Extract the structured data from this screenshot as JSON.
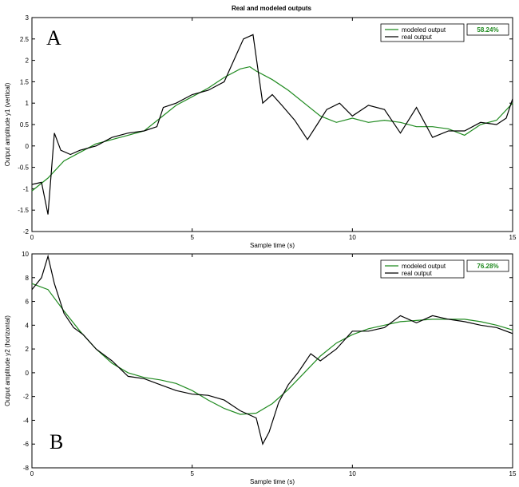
{
  "colors": {
    "modeled": "#1f8a1f",
    "real": "#000000",
    "fit_text": "#1f8a1f"
  },
  "chart_data": [
    {
      "type": "line",
      "panel": "A",
      "title": "Real and modeled outputs",
      "xlabel": "Sample time (s)",
      "ylabel": "Output amplitude y1 (vertical)",
      "xlim": [
        0,
        15
      ],
      "ylim": [
        -2,
        3
      ],
      "xticks": [
        0,
        5,
        10,
        15
      ],
      "yticks": [
        -2,
        -1.5,
        -1,
        -0.5,
        0,
        0.5,
        1,
        1.5,
        2,
        2.5,
        3
      ],
      "legend_position": "top-right",
      "fit_label": "58.24%",
      "series": [
        {
          "name": "modeled output",
          "x": [
            0,
            0.5,
            1,
            1.5,
            2,
            2.5,
            3,
            3.5,
            4,
            4.5,
            5,
            5.5,
            6,
            6.5,
            6.8,
            7,
            7.5,
            8,
            8.5,
            9,
            9.5,
            10,
            10.5,
            11,
            11.5,
            12,
            12.5,
            13,
            13.5,
            14,
            14.5,
            15
          ],
          "y": [
            -1.05,
            -0.75,
            -0.35,
            -0.15,
            0.05,
            0.15,
            0.25,
            0.35,
            0.65,
            0.95,
            1.15,
            1.35,
            1.6,
            1.8,
            1.85,
            1.75,
            1.55,
            1.3,
            1.0,
            0.7,
            0.55,
            0.65,
            0.55,
            0.6,
            0.55,
            0.45,
            0.45,
            0.4,
            0.25,
            0.5,
            0.6,
            1.0
          ]
        },
        {
          "name": "real output",
          "x": [
            0,
            0.3,
            0.5,
            0.7,
            0.9,
            1.2,
            1.5,
            2,
            2.5,
            3,
            3.5,
            3.9,
            4.1,
            4.5,
            5,
            5.5,
            6,
            6.3,
            6.6,
            6.9,
            7.2,
            7.5,
            7.8,
            8.2,
            8.6,
            8.9,
            9.2,
            9.6,
            10,
            10.5,
            11,
            11.5,
            12,
            12.5,
            13,
            13.5,
            14,
            14.5,
            14.8,
            15
          ],
          "y": [
            -0.9,
            -0.85,
            -1.6,
            0.3,
            -0.1,
            -0.2,
            -0.1,
            0.0,
            0.2,
            0.3,
            0.35,
            0.45,
            0.9,
            1.0,
            1.2,
            1.3,
            1.5,
            2.0,
            2.5,
            2.6,
            1.0,
            1.2,
            0.95,
            0.6,
            0.15,
            0.5,
            0.85,
            1.0,
            0.7,
            0.95,
            0.85,
            0.3,
            0.9,
            0.2,
            0.35,
            0.35,
            0.55,
            0.5,
            0.65,
            1.1
          ]
        }
      ]
    },
    {
      "type": "line",
      "panel": "B",
      "xlabel": "Sample time (s)",
      "ylabel": "Output amplitude y2 (horizontal)",
      "xlim": [
        0,
        15
      ],
      "ylim": [
        -8,
        10
      ],
      "xticks": [
        0,
        5,
        10,
        15
      ],
      "yticks": [
        -8,
        -6,
        -4,
        -2,
        0,
        2,
        4,
        6,
        8,
        10
      ],
      "legend_position": "top-right",
      "fit_label": "76.28%",
      "series": [
        {
          "name": "modeled output",
          "x": [
            0,
            0.5,
            1,
            1.5,
            2,
            2.5,
            3,
            3.5,
            4,
            4.5,
            5,
            5.5,
            6,
            6.5,
            7,
            7.5,
            8,
            8.5,
            9,
            9.5,
            10,
            10.5,
            11,
            11.5,
            12,
            12.5,
            13,
            13.5,
            14,
            14.5,
            15
          ],
          "y": [
            7.5,
            7.0,
            5.2,
            3.5,
            2.0,
            0.8,
            0.0,
            -0.4,
            -0.6,
            -0.9,
            -1.5,
            -2.3,
            -3.0,
            -3.5,
            -3.4,
            -2.6,
            -1.4,
            0.0,
            1.4,
            2.5,
            3.2,
            3.7,
            4.0,
            4.3,
            4.4,
            4.5,
            4.5,
            4.5,
            4.3,
            4.0,
            3.6
          ]
        },
        {
          "name": "real output",
          "x": [
            0,
            0.3,
            0.5,
            0.7,
            1,
            1.3,
            1.6,
            2,
            2.5,
            3,
            3.5,
            4,
            4.5,
            5,
            5.5,
            6,
            6.5,
            7,
            7.2,
            7.4,
            7.7,
            8,
            8.3,
            8.7,
            9,
            9.5,
            10,
            10.5,
            11,
            11.5,
            12,
            12.5,
            13,
            13.5,
            14,
            14.5,
            15
          ],
          "y": [
            7.0,
            8.0,
            9.8,
            7.5,
            5.0,
            3.8,
            3.2,
            2.0,
            1.0,
            -0.3,
            -0.5,
            -1.0,
            -1.5,
            -1.8,
            -1.9,
            -2.3,
            -3.2,
            -3.8,
            -6.0,
            -5.0,
            -2.5,
            -1.0,
            0.0,
            1.6,
            1.0,
            2.0,
            3.5,
            3.5,
            3.8,
            4.8,
            4.2,
            4.8,
            4.5,
            4.3,
            4.0,
            3.8,
            3.3
          ]
        }
      ]
    }
  ]
}
